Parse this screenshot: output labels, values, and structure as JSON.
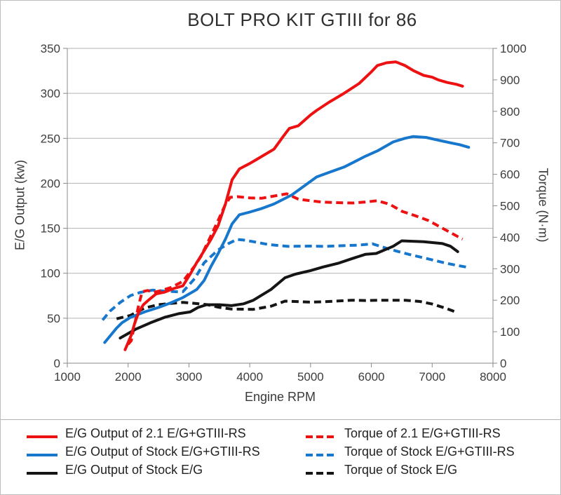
{
  "title": "BOLT PRO KIT GTIII for 86",
  "colors": {
    "red": "#ee1111",
    "blue": "#1777cd",
    "black": "#151515",
    "grid": "#b3b3b3",
    "axis": "#8a8a8a",
    "text": "#3d3d3d"
  },
  "chart_data": {
    "type": "line",
    "title": "BOLT PRO KIT GTIII for 86",
    "x_axis": {
      "label": "Engine RPM",
      "min": 1000,
      "max": 8000,
      "tick_step": 1000
    },
    "y_left": {
      "label": "E/G Output (kw)",
      "min": 0,
      "max": 350,
      "tick_step": 50
    },
    "y_right": {
      "label": "Torque (N·m)",
      "min": 0,
      "max": 1000,
      "tick_step": 100
    },
    "grid": "horizontal-only",
    "legend_position": "bottom",
    "series": [
      {
        "id": "output-2-1-gtiii-rs",
        "name": "E/G Output of 2.1 E/G+GTIII-RS",
        "color": "#ee1111",
        "style": "solid",
        "axis": "left",
        "points": [
          [
            1950,
            15
          ],
          [
            2050,
            31
          ],
          [
            2110,
            45
          ],
          [
            2170,
            56
          ],
          [
            2250,
            65
          ],
          [
            2350,
            71
          ],
          [
            2460,
            77
          ],
          [
            2600,
            79
          ],
          [
            2750,
            83
          ],
          [
            2900,
            86
          ],
          [
            3020,
            99
          ],
          [
            3130,
            112
          ],
          [
            3250,
            125
          ],
          [
            3365,
            138
          ],
          [
            3480,
            153
          ],
          [
            3600,
            177
          ],
          [
            3710,
            204
          ],
          [
            3830,
            216
          ],
          [
            4000,
            222
          ],
          [
            4100,
            226
          ],
          [
            4250,
            232
          ],
          [
            4400,
            238
          ],
          [
            4550,
            252
          ],
          [
            4650,
            261
          ],
          [
            4800,
            264
          ],
          [
            5000,
            276
          ],
          [
            5100,
            281
          ],
          [
            5300,
            290
          ],
          [
            5550,
            300
          ],
          [
            5800,
            311
          ],
          [
            6000,
            324
          ],
          [
            6100,
            331
          ],
          [
            6250,
            334
          ],
          [
            6400,
            335
          ],
          [
            6550,
            331
          ],
          [
            6700,
            325
          ],
          [
            6860,
            320
          ],
          [
            7000,
            318
          ],
          [
            7100,
            315
          ],
          [
            7250,
            312
          ],
          [
            7400,
            310
          ],
          [
            7500,
            308
          ]
        ]
      },
      {
        "id": "output-stock-gtiii-rs",
        "name": "E/G Output of Stock E/G+GTIII-RS",
        "color": "#1777cd",
        "style": "solid",
        "axis": "left",
        "points": [
          [
            1615,
            23
          ],
          [
            1700,
            30
          ],
          [
            1810,
            39
          ],
          [
            1900,
            45
          ],
          [
            2040,
            51
          ],
          [
            2270,
            57
          ],
          [
            2500,
            62
          ],
          [
            2700,
            67
          ],
          [
            2900,
            73
          ],
          [
            3130,
            82
          ],
          [
            3250,
            92
          ],
          [
            3365,
            108
          ],
          [
            3480,
            122
          ],
          [
            3600,
            138
          ],
          [
            3710,
            155
          ],
          [
            3830,
            165
          ],
          [
            4000,
            168
          ],
          [
            4200,
            172
          ],
          [
            4400,
            177
          ],
          [
            4690,
            187
          ],
          [
            5100,
            207
          ],
          [
            5300,
            212
          ],
          [
            5550,
            218
          ],
          [
            5900,
            230
          ],
          [
            6100,
            236
          ],
          [
            6360,
            246
          ],
          [
            6550,
            250
          ],
          [
            6690,
            252
          ],
          [
            6900,
            251
          ],
          [
            7100,
            248
          ],
          [
            7300,
            245
          ],
          [
            7450,
            243
          ],
          [
            7600,
            240
          ]
        ]
      },
      {
        "id": "output-stock",
        "name": "E/G Output of Stock E/G",
        "color": "#151515",
        "style": "solid",
        "axis": "left",
        "points": [
          [
            1870,
            28
          ],
          [
            2130,
            38
          ],
          [
            2370,
            45
          ],
          [
            2600,
            51
          ],
          [
            2830,
            55
          ],
          [
            3020,
            57
          ],
          [
            3150,
            62
          ],
          [
            3290,
            65
          ],
          [
            3500,
            65
          ],
          [
            3700,
            64
          ],
          [
            3900,
            66
          ],
          [
            4060,
            70
          ],
          [
            4350,
            82
          ],
          [
            4580,
            95
          ],
          [
            4750,
            99
          ],
          [
            5000,
            103
          ],
          [
            5210,
            107
          ],
          [
            5450,
            111
          ],
          [
            5670,
            116
          ],
          [
            5900,
            121
          ],
          [
            6080,
            122
          ],
          [
            6360,
            130
          ],
          [
            6500,
            136
          ],
          [
            6860,
            135
          ],
          [
            7170,
            133
          ],
          [
            7300,
            130
          ],
          [
            7420,
            124
          ]
        ]
      },
      {
        "id": "torque-2-1-gtiii-rs",
        "name": "Torque of 2.1 E/G+GTIII-RS",
        "color": "#ee1111",
        "style": "dashed",
        "axis": "right",
        "points": [
          [
            2000,
            60
          ],
          [
            2050,
            71
          ],
          [
            2110,
            126
          ],
          [
            2170,
            182
          ],
          [
            2230,
            227
          ],
          [
            2320,
            231
          ],
          [
            2420,
            225
          ],
          [
            2550,
            231
          ],
          [
            2700,
            240
          ],
          [
            2800,
            250
          ],
          [
            2900,
            260
          ],
          [
            3000,
            285
          ],
          [
            3100,
            310
          ],
          [
            3200,
            340
          ],
          [
            3300,
            380
          ],
          [
            3400,
            420
          ],
          [
            3500,
            462
          ],
          [
            3600,
            505
          ],
          [
            3680,
            527
          ],
          [
            3800,
            529
          ],
          [
            4000,
            525
          ],
          [
            4200,
            524
          ],
          [
            4400,
            531
          ],
          [
            4610,
            538
          ],
          [
            4800,
            521
          ],
          [
            5000,
            516
          ],
          [
            5180,
            512
          ],
          [
            5400,
            510
          ],
          [
            5700,
            509
          ],
          [
            5900,
            512
          ],
          [
            6100,
            516
          ],
          [
            6300,
            505
          ],
          [
            6510,
            482
          ],
          [
            6700,
            470
          ],
          [
            6940,
            453
          ],
          [
            7100,
            436
          ],
          [
            7300,
            415
          ],
          [
            7500,
            394
          ]
        ]
      },
      {
        "id": "torque-stock-gtiii-rs",
        "name": "Torque of Stock E/G+GTIII-RS",
        "color": "#1777cd",
        "style": "dashed",
        "axis": "right",
        "points": [
          [
            1580,
            137
          ],
          [
            1700,
            165
          ],
          [
            1870,
            193
          ],
          [
            2040,
            215
          ],
          [
            2200,
            225
          ],
          [
            2400,
            232
          ],
          [
            2600,
            229
          ],
          [
            2800,
            227
          ],
          [
            2900,
            227
          ],
          [
            3100,
            270
          ],
          [
            3250,
            319
          ],
          [
            3480,
            360
          ],
          [
            3650,
            380
          ],
          [
            3790,
            393
          ],
          [
            3900,
            391
          ],
          [
            4060,
            386
          ],
          [
            4300,
            377
          ],
          [
            4630,
            371
          ],
          [
            5000,
            372
          ],
          [
            5210,
            371
          ],
          [
            5500,
            373
          ],
          [
            5790,
            375
          ],
          [
            6020,
            379
          ],
          [
            6300,
            362
          ],
          [
            6630,
            345
          ],
          [
            6900,
            333
          ],
          [
            7200,
            319
          ],
          [
            7400,
            311
          ],
          [
            7600,
            304
          ]
        ]
      },
      {
        "id": "torque-stock",
        "name": "Torque of Stock E/G",
        "color": "#151515",
        "style": "dashed",
        "axis": "right",
        "points": [
          [
            1810,
            141
          ],
          [
            2040,
            152
          ],
          [
            2270,
            175
          ],
          [
            2500,
            186
          ],
          [
            2700,
            190
          ],
          [
            2900,
            193
          ],
          [
            3100,
            190
          ],
          [
            3300,
            186
          ],
          [
            3480,
            178
          ],
          [
            3700,
            172
          ],
          [
            4060,
            171
          ],
          [
            4350,
            181
          ],
          [
            4580,
            197
          ],
          [
            4750,
            196
          ],
          [
            5000,
            194
          ],
          [
            5210,
            195
          ],
          [
            5670,
            200
          ],
          [
            5900,
            199
          ],
          [
            6100,
            200
          ],
          [
            6560,
            200
          ],
          [
            6800,
            196
          ],
          [
            7000,
            188
          ],
          [
            7200,
            176
          ],
          [
            7400,
            162
          ]
        ]
      }
    ]
  },
  "legend": {
    "column1": [
      0,
      1,
      2
    ],
    "column2": [
      3,
      4,
      5
    ]
  }
}
